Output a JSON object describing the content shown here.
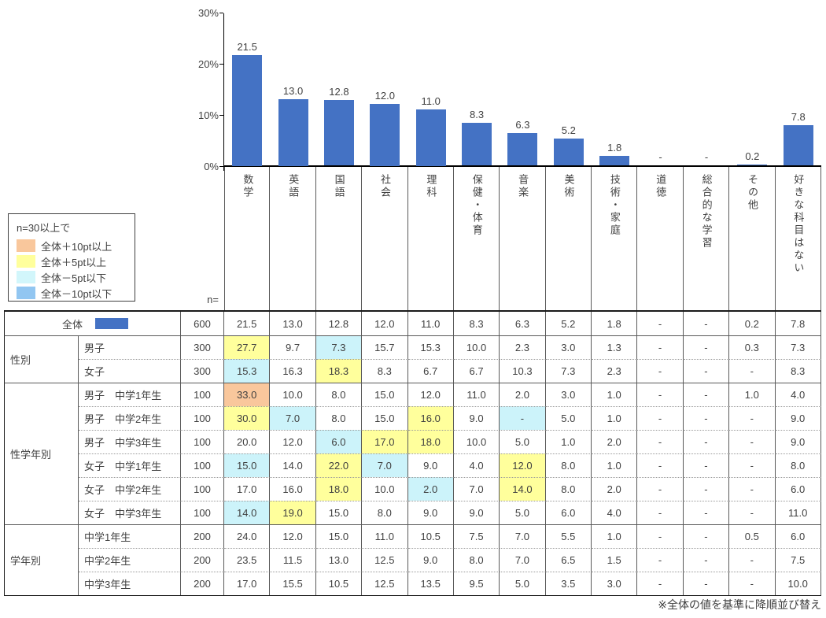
{
  "chart_data": {
    "type": "bar",
    "title": "",
    "xlabel": "",
    "ylabel": "",
    "categories": [
      "数学",
      "英語",
      "国語",
      "社会",
      "理科",
      "保健・体育",
      "音楽",
      "美術",
      "技術・家庭",
      "道徳",
      "総合的な学習",
      "その他",
      "好きな科目はない"
    ],
    "values": [
      21.5,
      13.0,
      12.8,
      12.0,
      11.0,
      8.3,
      6.3,
      5.2,
      1.8,
      null,
      null,
      0.2,
      7.8
    ],
    "value_labels": [
      "21.5",
      "13.0",
      "12.8",
      "12.0",
      "11.0",
      "8.3",
      "6.3",
      "5.2",
      "1.8",
      "-",
      "-",
      "0.2",
      "7.8"
    ],
    "ylim": [
      0,
      30
    ],
    "ytick_values": [
      0,
      10,
      20,
      30
    ],
    "ytick_labels": [
      "0%",
      "10%",
      "20%",
      "30%"
    ],
    "grid": false,
    "legend_position": "none",
    "bar_color": "#4472C4"
  },
  "legend": {
    "title": "n=30以上で",
    "items": [
      {
        "name": "plus10",
        "label": "全体＋10pt以上",
        "color": "#F9C79C"
      },
      {
        "name": "plus5",
        "label": "全体＋5pt以上",
        "color": "#FFFF9C"
      },
      {
        "name": "minus5",
        "label": "全体－5pt以下",
        "color": "#D2F6FB"
      },
      {
        "name": "minus10",
        "label": "全体－10pt以下",
        "color": "#92C6F1"
      }
    ]
  },
  "n_header": "n=",
  "highlight_colors": {
    "O": "#F9C79C",
    "Y": "#FFFF9C",
    "C": "#CCF3FA",
    "B": "#92C6F1"
  },
  "table": {
    "total_row_swatch_color": "#4472C4",
    "groups": [
      {
        "name": "",
        "rows": [
          {
            "label": "全体",
            "merged": true,
            "swatch": true,
            "n": "600",
            "values": [
              "21.5",
              "13.0",
              "12.8",
              "12.0",
              "11.0",
              "8.3",
              "6.3",
              "5.2",
              "1.8",
              "-",
              "-",
              "0.2",
              "7.8"
            ],
            "highlights": [
              "",
              "",
              "",
              "",
              "",
              "",
              "",
              "",
              "",
              "",
              "",
              "",
              ""
            ]
          }
        ]
      },
      {
        "name": "性別",
        "rows": [
          {
            "label": "男子",
            "n": "300",
            "values": [
              "27.7",
              "9.7",
              "7.3",
              "15.7",
              "15.3",
              "10.0",
              "2.3",
              "3.0",
              "1.3",
              "-",
              "-",
              "0.3",
              "7.3"
            ],
            "highlights": [
              "Y",
              "",
              "C",
              "",
              "",
              "",
              "",
              "",
              "",
              "",
              "",
              "",
              ""
            ]
          },
          {
            "label": "女子",
            "n": "300",
            "values": [
              "15.3",
              "16.3",
              "18.3",
              "8.3",
              "6.7",
              "6.7",
              "10.3",
              "7.3",
              "2.3",
              "-",
              "-",
              "-",
              "8.3"
            ],
            "highlights": [
              "C",
              "",
              "Y",
              "",
              "",
              "",
              "",
              "",
              "",
              "",
              "",
              "",
              ""
            ]
          }
        ]
      },
      {
        "name": "性学年別",
        "rows": [
          {
            "label": "男子　中学1年生",
            "n": "100",
            "values": [
              "33.0",
              "10.0",
              "8.0",
              "15.0",
              "12.0",
              "11.0",
              "2.0",
              "3.0",
              "1.0",
              "-",
              "-",
              "1.0",
              "4.0"
            ],
            "highlights": [
              "O",
              "",
              "",
              "",
              "",
              "",
              "",
              "",
              "",
              "",
              "",
              "",
              ""
            ]
          },
          {
            "label": "男子　中学2年生",
            "n": "100",
            "values": [
              "30.0",
              "7.0",
              "8.0",
              "15.0",
              "16.0",
              "9.0",
              "-",
              "5.0",
              "1.0",
              "-",
              "-",
              "-",
              "9.0"
            ],
            "highlights": [
              "Y",
              "C",
              "",
              "",
              "Y",
              "",
              "C",
              "",
              "",
              "",
              "",
              "",
              ""
            ]
          },
          {
            "label": "男子　中学3年生",
            "n": "100",
            "values": [
              "20.0",
              "12.0",
              "6.0",
              "17.0",
              "18.0",
              "10.0",
              "5.0",
              "1.0",
              "2.0",
              "-",
              "-",
              "-",
              "9.0"
            ],
            "highlights": [
              "",
              "",
              "C",
              "Y",
              "Y",
              "",
              "",
              "",
              "",
              "",
              "",
              "",
              ""
            ]
          },
          {
            "label": "女子　中学1年生",
            "n": "100",
            "values": [
              "15.0",
              "14.0",
              "22.0",
              "7.0",
              "9.0",
              "4.0",
              "12.0",
              "8.0",
              "1.0",
              "-",
              "-",
              "-",
              "8.0"
            ],
            "highlights": [
              "C",
              "",
              "Y",
              "C",
              "",
              "",
              "Y",
              "",
              "",
              "",
              "",
              "",
              ""
            ]
          },
          {
            "label": "女子　中学2年生",
            "n": "100",
            "values": [
              "17.0",
              "16.0",
              "18.0",
              "10.0",
              "2.0",
              "7.0",
              "14.0",
              "8.0",
              "2.0",
              "-",
              "-",
              "-",
              "6.0"
            ],
            "highlights": [
              "",
              "",
              "Y",
              "",
              "C",
              "",
              "Y",
              "",
              "",
              "",
              "",
              "",
              ""
            ]
          },
          {
            "label": "女子　中学3年生",
            "n": "100",
            "values": [
              "14.0",
              "19.0",
              "15.0",
              "8.0",
              "9.0",
              "9.0",
              "5.0",
              "6.0",
              "4.0",
              "-",
              "-",
              "-",
              "11.0"
            ],
            "highlights": [
              "C",
              "Y",
              "",
              "",
              "",
              "",
              "",
              "",
              "",
              "",
              "",
              "",
              ""
            ]
          }
        ]
      },
      {
        "name": "学年別",
        "rows": [
          {
            "label": "中学1年生",
            "n": "200",
            "values": [
              "24.0",
              "12.0",
              "15.0",
              "11.0",
              "10.5",
              "7.5",
              "7.0",
              "5.5",
              "1.0",
              "-",
              "-",
              "0.5",
              "6.0"
            ],
            "highlights": [
              "",
              "",
              "",
              "",
              "",
              "",
              "",
              "",
              "",
              "",
              "",
              "",
              ""
            ]
          },
          {
            "label": "中学2年生",
            "n": "200",
            "values": [
              "23.5",
              "11.5",
              "13.0",
              "12.5",
              "9.0",
              "8.0",
              "7.0",
              "6.5",
              "1.5",
              "-",
              "-",
              "-",
              "7.5"
            ],
            "highlights": [
              "",
              "",
              "",
              "",
              "",
              "",
              "",
              "",
              "",
              "",
              "",
              "",
              ""
            ]
          },
          {
            "label": "中学3年生",
            "n": "200",
            "values": [
              "17.0",
              "15.5",
              "10.5",
              "12.5",
              "13.5",
              "9.5",
              "5.0",
              "3.5",
              "3.0",
              "-",
              "-",
              "-",
              "10.0"
            ],
            "highlights": [
              "",
              "",
              "",
              "",
              "",
              "",
              "",
              "",
              "",
              "",
              "",
              "",
              ""
            ]
          }
        ]
      }
    ]
  },
  "footnote": "※全体の値を基準に降順並び替え"
}
